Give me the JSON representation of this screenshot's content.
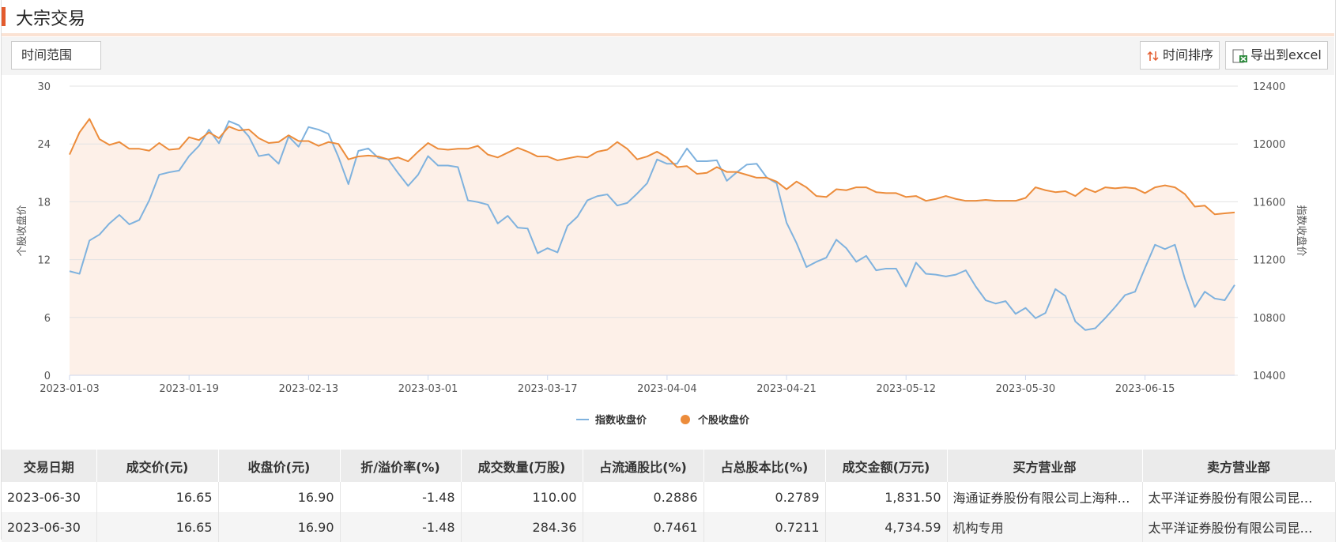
{
  "header": {
    "title": "大宗交易"
  },
  "toolbar": {
    "time_range": "时间范围",
    "sort": "时间排序",
    "export": "导出到excel"
  },
  "chart_data": {
    "type": "line",
    "categories": [
      "2023-01-03",
      null,
      null,
      null,
      null,
      null,
      null,
      null,
      null,
      null,
      null,
      null,
      "2023-01-19",
      null,
      null,
      null,
      null,
      null,
      null,
      null,
      null,
      null,
      null,
      null,
      "2023-02-13",
      null,
      null,
      null,
      null,
      null,
      null,
      null,
      null,
      null,
      null,
      null,
      "2023-03-01",
      null,
      null,
      null,
      null,
      null,
      null,
      null,
      null,
      null,
      null,
      null,
      "2023-03-17",
      null,
      null,
      null,
      null,
      null,
      null,
      null,
      null,
      null,
      null,
      null,
      "2023-04-04",
      null,
      null,
      null,
      null,
      null,
      null,
      null,
      null,
      null,
      null,
      null,
      "2023-04-21",
      null,
      null,
      null,
      null,
      null,
      null,
      null,
      null,
      null,
      null,
      null,
      "2023-05-12",
      null,
      null,
      null,
      null,
      null,
      null,
      null,
      null,
      null,
      null,
      null,
      "2023-05-30",
      null,
      null,
      null,
      null,
      null,
      null,
      null,
      null,
      null,
      null,
      null,
      "2023-06-15",
      null,
      null,
      null,
      null,
      null,
      null,
      null,
      null,
      null
    ],
    "series": [
      {
        "name": "指数收盘价",
        "color": "#7fb2de",
        "axis": "y2",
        "values": [
          11120,
          11102,
          11332,
          11373,
          11450,
          11509,
          11444,
          11474,
          11610,
          11787,
          11804,
          11816,
          11916,
          11987,
          12099,
          12005,
          12158,
          12129,
          12052,
          11916,
          11928,
          11863,
          12052,
          11981,
          12117,
          12099,
          12070,
          11910,
          11722,
          11952,
          11969,
          11904,
          11893,
          11798,
          11710,
          11787,
          11916,
          11851,
          11851,
          11840,
          11610,
          11598,
          11580,
          11450,
          11503,
          11421,
          11415,
          11244,
          11279,
          11250,
          11433,
          11497,
          11610,
          11639,
          11651,
          11574,
          11592,
          11657,
          11728,
          11893,
          11863,
          11863,
          11969,
          11881,
          11881,
          11887,
          11745,
          11804,
          11857,
          11863,
          11769,
          11728,
          11456,
          11315,
          11149,
          11185,
          11214,
          11338,
          11279,
          11185,
          11226,
          11126,
          11138,
          11138,
          11014,
          11179,
          11102,
          11096,
          11084,
          11096,
          11126,
          11014,
          10919,
          10896,
          10913,
          10825,
          10866,
          10795,
          10831,
          10996,
          10949,
          10772,
          10713,
          10725,
          10795,
          10872,
          10955,
          10978,
          11143,
          11303,
          11273,
          11303,
          11067,
          10872,
          10978,
          10931,
          10919,
          11025
        ]
      },
      {
        "name": "个股收盘价",
        "color": "#ec8c3b",
        "fill": "#fdf0e8",
        "values": [
          22.9,
          25.2,
          26.6,
          24.5,
          23.9,
          24.2,
          23.5,
          23.5,
          23.3,
          24.1,
          23.4,
          23.5,
          24.7,
          24.4,
          25.2,
          24.6,
          25.8,
          25.4,
          25.5,
          24.6,
          24.1,
          24.2,
          24.9,
          24.3,
          24.3,
          23.8,
          24.2,
          24.0,
          22.4,
          22.7,
          22.8,
          22.7,
          22.4,
          22.6,
          22.2,
          23.2,
          24.1,
          23.5,
          23.4,
          23.5,
          23.5,
          23.8,
          22.9,
          22.6,
          23.1,
          23.6,
          23.2,
          22.7,
          22.7,
          22.3,
          22.5,
          22.7,
          22.6,
          23.2,
          23.4,
          24.2,
          23.5,
          22.4,
          22.7,
          23.2,
          22.6,
          21.6,
          21.7,
          20.9,
          21.0,
          21.6,
          21.1,
          21.1,
          20.8,
          20.5,
          20.5,
          20.1,
          19.3,
          20.1,
          19.5,
          18.6,
          18.5,
          19.3,
          19.2,
          19.5,
          19.5,
          19.0,
          18.9,
          18.9,
          18.5,
          18.6,
          18.1,
          18.3,
          18.6,
          18.3,
          18.1,
          18.1,
          18.2,
          18.1,
          18.1,
          18.1,
          18.4,
          19.5,
          19.2,
          19.0,
          19.1,
          18.6,
          19.4,
          19.0,
          19.5,
          19.4,
          19.5,
          19.4,
          18.9,
          19.5,
          19.7,
          19.5,
          18.8,
          17.5,
          17.6,
          16.7,
          16.8,
          16.9
        ]
      }
    ],
    "ylabel": "个股收盘价",
    "y2label": "指数收盘价",
    "ylim": [
      0,
      30
    ],
    "yticks": [
      0,
      6,
      12,
      18,
      24,
      30
    ],
    "y2lim": [
      10400,
      12400
    ],
    "y2ticks": [
      10400,
      10800,
      11200,
      11600,
      12000,
      12400
    ],
    "grid": true,
    "legend": "bottom"
  },
  "table": {
    "columns": [
      "交易日期",
      "成交价(元)",
      "收盘价(元)",
      "折/溢价率(%)",
      "成交数量(万股)",
      "占流通股比(%)",
      "占总股本比(%)",
      "成交金额(万元)",
      "买方营业部",
      "卖方营业部"
    ],
    "rows": [
      [
        "2023-06-30",
        "16.65",
        "16.90",
        "-1.48",
        "110.00",
        "0.2886",
        "0.2789",
        "1,831.50",
        "海通证券股份有限公司上海种…",
        "太平洋证券股份有限公司昆…"
      ],
      [
        "2023-06-30",
        "16.65",
        "16.90",
        "-1.48",
        "284.36",
        "0.7461",
        "0.7211",
        "4,734.59",
        "机构专用",
        "太平洋证券股份有限公司昆…"
      ]
    ]
  }
}
